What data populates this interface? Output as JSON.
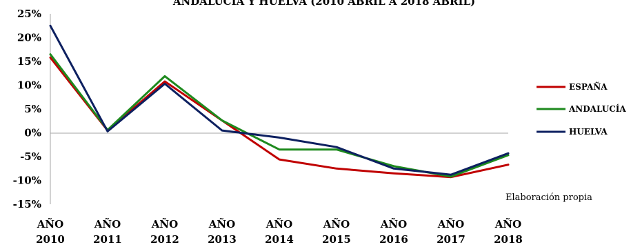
{
  "chart_data": {
    "type": "line",
    "title": "ANDALUCÍA Y HUELVA (2010 ABRIL A 2018 ABRIL)",
    "x": [
      "AÑO 2010",
      "AÑO 2011",
      "AÑO 2012",
      "AÑO 2013",
      "AÑO 2014",
      "AÑO 2015",
      "AÑO 2016",
      "AÑO 2017",
      "AÑO 2018"
    ],
    "x_label_lines": [
      [
        "AÑO",
        "2010"
      ],
      [
        "AÑO",
        "2011"
      ],
      [
        "AÑO",
        "2012"
      ],
      [
        "AÑO",
        "2013"
      ],
      [
        "AÑO",
        "2014"
      ],
      [
        "AÑO",
        "2015"
      ],
      [
        "AÑO",
        "2016"
      ],
      [
        "AÑO",
        "2017"
      ],
      [
        "AÑO",
        "2018"
      ]
    ],
    "ylim": [
      -15,
      25
    ],
    "yticks": [
      25,
      20,
      15,
      10,
      5,
      0,
      -5,
      -10,
      -15
    ],
    "ytick_labels": [
      "25%",
      "20%",
      "15%",
      "10%",
      "5%",
      "0%",
      "-5%",
      "-10%",
      "-15%"
    ],
    "grid": false,
    "legend_position": "right",
    "annotation": "Elaboración propia",
    "series": [
      {
        "name": "ESPAÑA",
        "color": "#c00000",
        "values": [
          15.8,
          0.5,
          10.8,
          2.6,
          -5.6,
          -7.5,
          -8.5,
          -9.3,
          -6.7
        ]
      },
      {
        "name": "ANDALUCÍA",
        "color": "#1e8a1e",
        "values": [
          16.5,
          0.6,
          11.9,
          2.6,
          -3.5,
          -3.5,
          -7.0,
          -9.2,
          -4.7
        ]
      },
      {
        "name": "HUELVA",
        "color": "#0d2060",
        "values": [
          22.5,
          0.3,
          10.3,
          0.5,
          -1.0,
          -3.0,
          -7.5,
          -8.8,
          -4.3
        ]
      }
    ]
  }
}
